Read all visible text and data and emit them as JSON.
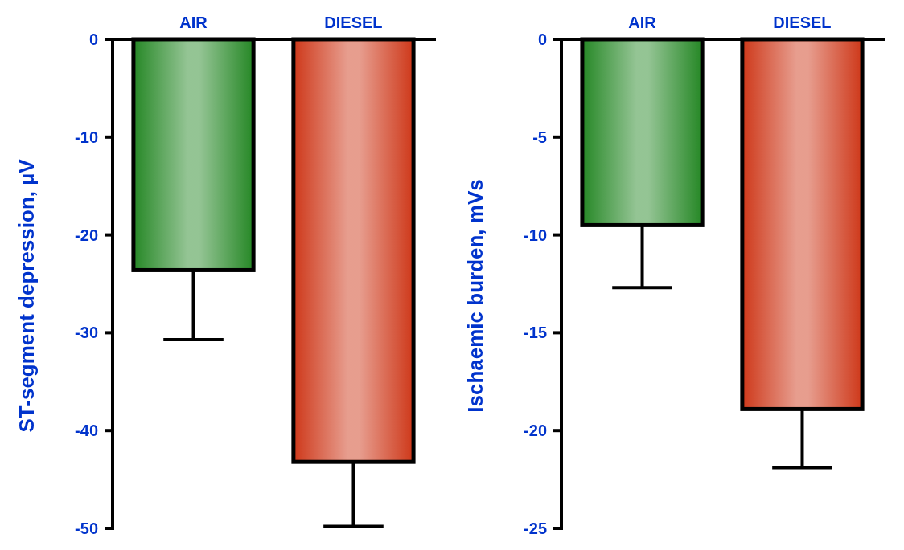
{
  "chart_data": [
    {
      "type": "bar",
      "ylabel": "ST-segment depression, µV",
      "categories": [
        "AIR",
        "DIESEL"
      ],
      "values": [
        -23.6,
        -43.2
      ],
      "colors": [
        "#2a8a2a",
        "#cf3c1e"
      ],
      "errors": [
        [
          -30.7,
          -23.6
        ],
        [
          -49.8,
          -43.2
        ]
      ],
      "ylim": [
        -50,
        0
      ],
      "yticks": [
        0,
        -10,
        -20,
        -30,
        -40,
        -50
      ]
    },
    {
      "type": "bar",
      "ylabel": "Ischaemic burden, mVs",
      "categories": [
        "AIR",
        "DIESEL"
      ],
      "values": [
        -9.5,
        -18.9
      ],
      "colors": [
        "#2a8a2a",
        "#cf3c1e"
      ],
      "errors": [
        [
          -12.7,
          -9.5
        ],
        [
          -21.9,
          -18.9
        ]
      ],
      "ylim": [
        -25,
        0
      ],
      "yticks": [
        0,
        -5,
        -10,
        -15,
        -20,
        -25
      ]
    }
  ]
}
